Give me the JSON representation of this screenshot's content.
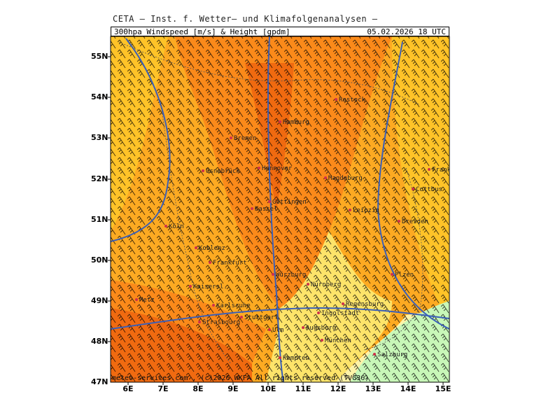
{
  "header": {
    "org": "CETA — Inst. f. Wetter— und Klimafolgenanalysen —",
    "product": "300hpa Windspeed [m/s] & Height [gpdm]",
    "valid": "05.02.2026 18 UTC"
  },
  "axes": {
    "lat_labels": [
      "55N",
      "54N",
      "53N",
      "52N",
      "51N",
      "50N",
      "49N",
      "48N",
      "47N"
    ],
    "lon_labels": [
      "6E",
      "7E",
      "8E",
      "9E",
      "10E",
      "11E",
      "12E",
      "13E",
      "14E",
      "15E"
    ]
  },
  "cities": [
    {
      "name": "Rostock"
    },
    {
      "name": "Hamburg"
    },
    {
      "name": "Bremen"
    },
    {
      "name": "Hannover"
    },
    {
      "name": "Magdeburg"
    },
    {
      "name": "Cottbus"
    },
    {
      "name": "Göttingen"
    },
    {
      "name": "Kassel"
    },
    {
      "name": "Leipzig"
    },
    {
      "name": "Dresden"
    },
    {
      "name": "Frankfurt"
    },
    {
      "name": "Koblenz"
    },
    {
      "name": "Kaisersl."
    },
    {
      "name": "Würzburg"
    },
    {
      "name": "Nürnberg"
    },
    {
      "name": "Regensburg"
    },
    {
      "name": "Karlsruhe"
    },
    {
      "name": "Stuttgart"
    },
    {
      "name": "Strasbourg"
    },
    {
      "name": "Ulm"
    },
    {
      "name": "Augsburg"
    },
    {
      "name": "Ingolstadt"
    },
    {
      "name": "München"
    },
    {
      "name": "Salzburg"
    },
    {
      "name": "Kempten"
    },
    {
      "name": "Metz"
    },
    {
      "name": "Frankfurt/O."
    },
    {
      "name": "Osnabrück"
    },
    {
      "name": "Köln"
    },
    {
      "name": "Plzen"
    }
  ],
  "copyright": "meteo-services.com , (c)2026 WKFA All rights reserved (TVG36)",
  "colors": {
    "dark_orange": "#f06a10",
    "orange": "#fb8a1a",
    "light_orange": "#fdaa22",
    "yellow_orange": "#ffc328",
    "yellow": "#fde46a",
    "pale_yellow": "#fff3a8",
    "light_green": "#c8f7b8",
    "contour": "#3a5fb8"
  }
}
